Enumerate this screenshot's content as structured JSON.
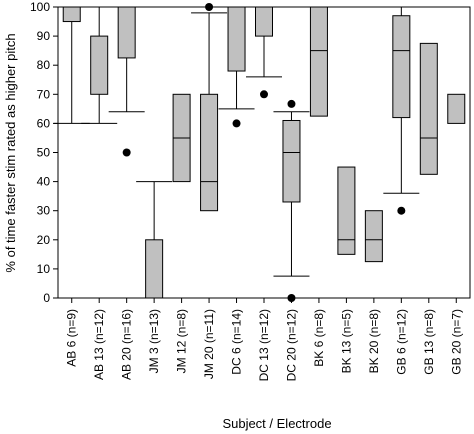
{
  "chart_data": {
    "type": "box",
    "xlabel": "Subject / Electrode",
    "ylabel": "% of time faster stim rated as higher pitch",
    "ylim": [
      0,
      100
    ],
    "yticks": [
      0,
      10,
      20,
      30,
      40,
      50,
      60,
      70,
      80,
      90,
      100
    ],
    "grid": false,
    "colors": {
      "box_fill": "#c0c0c0",
      "stroke": "#000000"
    },
    "categories": [
      "AB 6 (n=9)",
      "AB 13 (n=12)",
      "AB 20 (n=16)",
      "JM 3 (n=13)",
      "JM 12 (n=8)",
      "JM 20 (n=11)",
      "DC 6 (n=14)",
      "DC 13 (n=12)",
      "DC 20 (n=12)",
      "BK 6 (n=8)",
      "BK 13 (n=5)",
      "BK 20 (n=8)",
      "GB 6 (n=12)",
      "GB 13 (n=8)",
      "GB 20 (n=7)"
    ],
    "boxes": [
      {
        "whisker_low": 60,
        "q1": 95,
        "median": 100,
        "q3": 100,
        "whisker_high": 100,
        "outliers": []
      },
      {
        "whisker_low": 60,
        "q1": 70,
        "median": 70,
        "q3": 90,
        "whisker_high": 100,
        "outliers": []
      },
      {
        "whisker_low": 64,
        "q1": 82.5,
        "median": 100,
        "q3": 100,
        "whisker_high": 100,
        "outliers": [
          50
        ]
      },
      {
        "whisker_low": 0,
        "q1": 0,
        "median": 0,
        "q3": 20,
        "whisker_high": 40,
        "outliers": []
      },
      {
        "whisker_low": 40,
        "q1": 40,
        "median": 55,
        "q3": 70,
        "whisker_high": 70,
        "outliers": []
      },
      {
        "whisker_low": 30,
        "q1": 30,
        "median": 40,
        "q3": 70,
        "whisker_high": 98,
        "outliers": [
          100
        ]
      },
      {
        "whisker_low": 65,
        "q1": 78,
        "median": 100,
        "q3": 100,
        "whisker_high": 100,
        "outliers": [
          60
        ]
      },
      {
        "whisker_low": 76,
        "q1": 90,
        "median": 100,
        "q3": 100,
        "whisker_high": 100,
        "outliers": [
          70
        ]
      },
      {
        "whisker_low": 7.5,
        "q1": 33,
        "median": 50,
        "q3": 61,
        "whisker_high": 64,
        "outliers": [
          0,
          66.7
        ]
      },
      {
        "whisker_low": 62.5,
        "q1": 62.5,
        "median": 85,
        "q3": 100,
        "whisker_high": 100,
        "outliers": []
      },
      {
        "whisker_low": 15,
        "q1": 15,
        "median": 20,
        "q3": 45,
        "whisker_high": 45,
        "outliers": []
      },
      {
        "whisker_low": 12.5,
        "q1": 12.5,
        "median": 20,
        "q3": 30,
        "whisker_high": 30,
        "outliers": []
      },
      {
        "whisker_low": 36,
        "q1": 62,
        "median": 85,
        "q3": 97,
        "whisker_high": 100,
        "outliers": [
          30
        ]
      },
      {
        "whisker_low": 42.5,
        "q1": 42.5,
        "median": 55,
        "q3": 87.5,
        "whisker_high": 87.5,
        "outliers": []
      },
      {
        "whisker_low": 60,
        "q1": 60,
        "median": 60,
        "q3": 70,
        "whisker_high": 70,
        "outliers": []
      }
    ]
  }
}
